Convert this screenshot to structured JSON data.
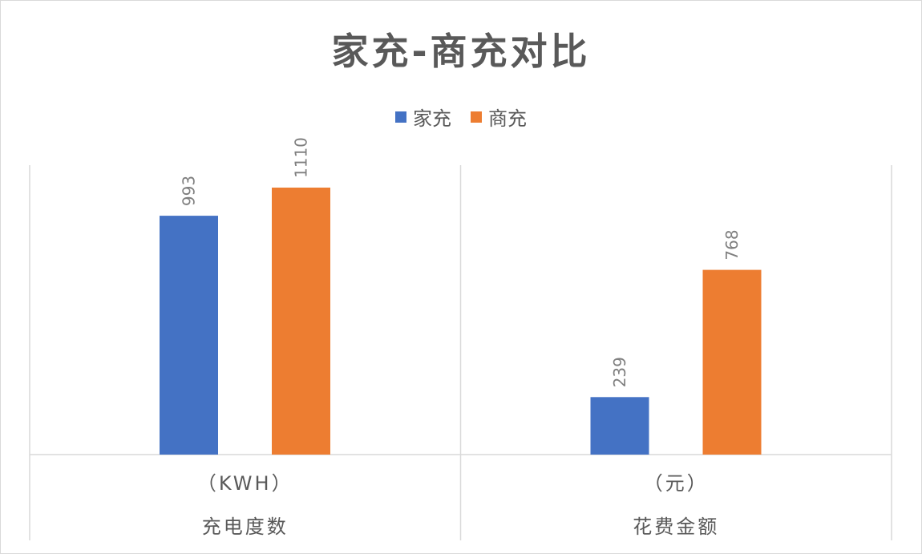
{
  "chart_data": {
    "type": "bar",
    "title": "家充-商充对比",
    "categories": [
      {
        "unit": "（KWH）",
        "name": "充电度数"
      },
      {
        "unit": "（元）",
        "name": "花费金额"
      }
    ],
    "series": [
      {
        "name": "家充",
        "color": "#4472c4",
        "values": [
          993,
          239
        ]
      },
      {
        "name": "商充",
        "color": "#ed7d31",
        "values": [
          1110,
          768
        ]
      }
    ],
    "legend_position": "top",
    "grid": false
  }
}
